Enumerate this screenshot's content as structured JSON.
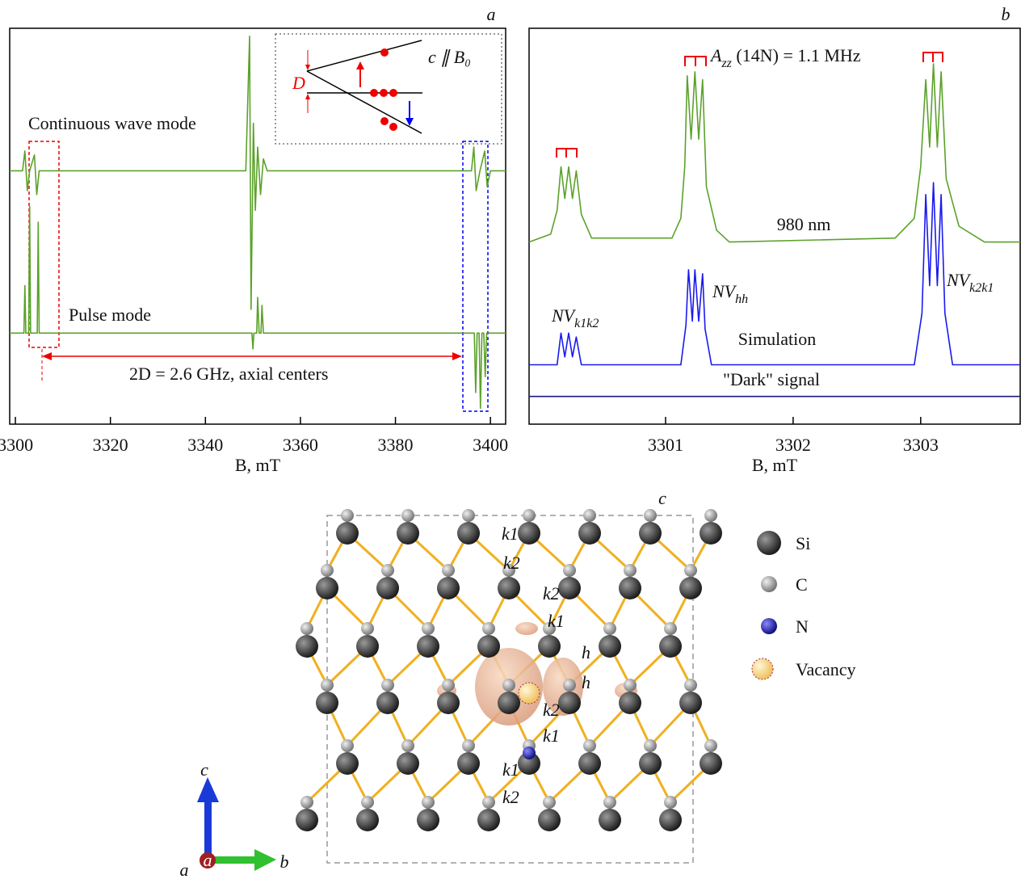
{
  "chart_data": [
    {
      "type": "line",
      "label": "a",
      "xlabel": "B, mT",
      "xlim": [
        3298.8,
        3403.2
      ],
      "xticks": [
        3300,
        3320,
        3340,
        3360,
        3380,
        3400
      ],
      "ylim": [
        0,
        10
      ],
      "series": [
        {
          "name": "Continuous wave mode",
          "color": "#5ba22a",
          "x": [
            3298.8,
            3301.5,
            3302,
            3302.5,
            3303,
            3304,
            3304.5,
            3305,
            3348.5,
            3349.3,
            3349.6,
            3350.1,
            3350.5,
            3351,
            3351.6,
            3352.2,
            3353,
            3396,
            3396.5,
            3397,
            3397.8,
            3398.8,
            3399.3,
            3400,
            3403.2
          ],
          "values": [
            6.4,
            6.4,
            6.9,
            5.9,
            6.4,
            6.8,
            5.8,
            6.4,
            6.4,
            9.8,
            2.9,
            7.6,
            5.4,
            7.0,
            5.8,
            6.7,
            6.4,
            6.4,
            7.0,
            5.9,
            6.4,
            6.9,
            6.0,
            6.4,
            6.4
          ]
        },
        {
          "name": "Pulse mode",
          "color": "#5ba22a",
          "x": [
            3298.8,
            3301.8,
            3302,
            3302.2,
            3302.8,
            3303,
            3303.2,
            3304.6,
            3304.8,
            3305,
            3349.8,
            3350,
            3350.2,
            3350.8,
            3351,
            3351.3,
            3351.7,
            3351.9,
            3352.2,
            3396.6,
            3396.9,
            3397.2,
            3397.6,
            3397.9,
            3398.2,
            3398.6,
            3398.9,
            3399.2,
            3403.2
          ],
          "values": [
            2.3,
            2.3,
            3.5,
            2.3,
            2.3,
            5.5,
            2.3,
            2.3,
            5.1,
            2.3,
            2.3,
            1.9,
            2.3,
            2.3,
            3.2,
            2.3,
            2.3,
            3.0,
            2.3,
            2.3,
            0.8,
            2.3,
            2.3,
            0.4,
            2.3,
            2.3,
            1.2,
            2.3,
            2.3
          ]
        }
      ],
      "annotations": {
        "splitting": "2D = 2.6 GHz, axial centers",
        "orientation": "c ∥ B₀",
        "zero_field": "D"
      }
    },
    {
      "type": "line",
      "label": "b",
      "xlabel": "B, mT",
      "xlim": [
        3299.93,
        3303.78
      ],
      "xticks": [
        3301,
        3302,
        3303
      ],
      "ylim": [
        0,
        10
      ],
      "series": [
        {
          "name": "980 nm",
          "color": "#5ba22a",
          "x": [
            3299.93,
            3300.1,
            3300.15,
            3300.18,
            3300.21,
            3300.24,
            3300.27,
            3300.3,
            3300.34,
            3300.42,
            3301.05,
            3301.12,
            3301.15,
            3301.17,
            3301.2,
            3301.23,
            3301.26,
            3301.29,
            3301.32,
            3301.4,
            3301.5,
            3302.8,
            3302.95,
            3303.0,
            3303.04,
            3303.07,
            3303.1,
            3303.13,
            3303.16,
            3303.2,
            3303.3,
            3303.5,
            3303.78
          ],
          "values": [
            4.6,
            4.8,
            5.4,
            6.5,
            5.7,
            6.5,
            5.7,
            6.4,
            5.3,
            4.7,
            4.7,
            5.2,
            6.5,
            8.8,
            7.2,
            8.9,
            7.2,
            8.7,
            6.0,
            4.9,
            4.6,
            4.7,
            5.2,
            6.5,
            8.7,
            7.0,
            9.1,
            7.0,
            8.9,
            6.2,
            5.0,
            4.6,
            4.6
          ]
        },
        {
          "name": "Simulation",
          "color": "#1a1aee",
          "x": [
            3299.93,
            3300.15,
            3300.18,
            3300.21,
            3300.24,
            3300.27,
            3300.3,
            3300.34,
            3301.12,
            3301.16,
            3301.18,
            3301.21,
            3301.23,
            3301.26,
            3301.29,
            3301.31,
            3301.36,
            3302.95,
            3303.01,
            3303.04,
            3303.07,
            3303.1,
            3303.13,
            3303.16,
            3303.19,
            3303.25,
            3303.78
          ],
          "values": [
            1.5,
            1.5,
            2.3,
            1.7,
            2.3,
            1.7,
            2.2,
            1.5,
            1.5,
            2.5,
            3.9,
            2.6,
            3.9,
            2.6,
            3.8,
            2.4,
            1.5,
            1.5,
            2.8,
            5.8,
            3.5,
            6.1,
            3.5,
            5.8,
            2.8,
            1.5,
            1.5
          ]
        },
        {
          "name": "\"Dark\" signal",
          "color": "#1a1a80",
          "x": [
            3299.93,
            3303.78
          ],
          "values": [
            0.7,
            0.7
          ]
        }
      ],
      "annotations": {
        "centers": [
          {
            "text": "NV",
            "sub": "k1k2"
          },
          {
            "text": "NV",
            "sub": "hh"
          },
          {
            "text": "NV",
            "sub": "k2k1"
          }
        ],
        "hyperfine": {
          "text": "A",
          "sub": "zz",
          "rest": " (14N) = 1.1 MHz"
        }
      }
    }
  ],
  "structure": {
    "cell_axis": "c",
    "site_labels": [
      "k1",
      "k2",
      "k2",
      "k1",
      "h",
      "h",
      "k2",
      "k1",
      "k1",
      "k2"
    ],
    "legend": [
      "Si",
      "C",
      "N",
      "Vacancy"
    ],
    "axes": [
      "c",
      "b",
      "a"
    ]
  }
}
